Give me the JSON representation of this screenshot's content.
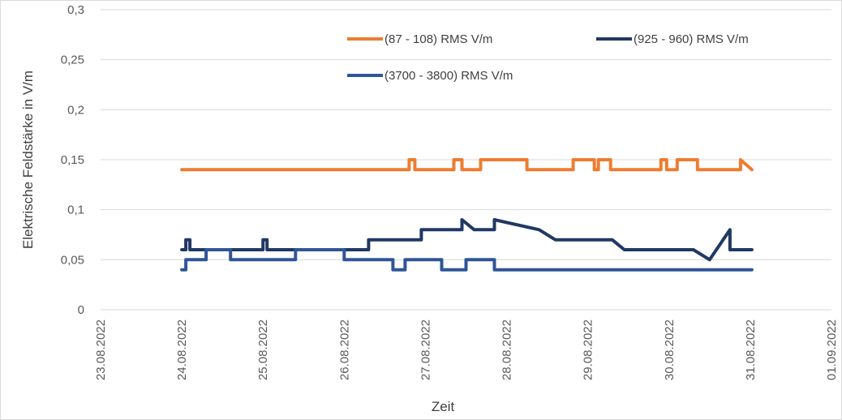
{
  "chart_data": {
    "type": "line",
    "title": "",
    "xlabel": "Zeit",
    "ylabel": "Elektrische Feldstärke in V/m",
    "ylim": [
      0,
      0.3
    ],
    "y_ticks": [
      "0",
      "0,05",
      "0,1",
      "0,15",
      "0,2",
      "0,25",
      "0,3"
    ],
    "x_tick_labels": [
      "23.08.2022",
      "24.08.2022",
      "25.08.2022",
      "26.08.2022",
      "27.08.2022",
      "28.08.2022",
      "29.08.2022",
      "30.08.2022",
      "31.08.2022",
      "01.09.2022"
    ],
    "xlim": [
      "23.08.2022",
      "01.09.2022"
    ],
    "grid": true,
    "legend_position": "top",
    "series": [
      {
        "name": "(87 - 108) RMS  V/m",
        "color": "#ed7d31",
        "x_days": [
          1.0,
          3.8,
          3.8,
          3.87,
          3.87,
          4.35,
          4.35,
          4.45,
          4.45,
          4.68,
          4.68,
          5.25,
          5.25,
          5.82,
          5.82,
          6.08,
          6.08,
          6.13,
          6.13,
          6.28,
          6.28,
          6.9,
          6.9,
          6.97,
          6.97,
          7.1,
          7.1,
          7.35,
          7.35,
          7.88,
          7.88,
          8.02
        ],
        "y": [
          0.14,
          0.14,
          0.15,
          0.15,
          0.14,
          0.14,
          0.15,
          0.15,
          0.14,
          0.14,
          0.15,
          0.15,
          0.14,
          0.14,
          0.15,
          0.15,
          0.14,
          0.14,
          0.15,
          0.15,
          0.14,
          0.14,
          0.15,
          0.15,
          0.14,
          0.14,
          0.15,
          0.15,
          0.14,
          0.14,
          0.15,
          0.14
        ]
      },
      {
        "name": "(925 - 960) RMS  V/m",
        "color": "#203864",
        "x_days": [
          1.0,
          1.05,
          1.05,
          1.1,
          1.1,
          2.0,
          2.0,
          2.05,
          2.05,
          2.2,
          2.2,
          3.3,
          3.3,
          3.65,
          3.65,
          3.95,
          3.95,
          4.2,
          4.2,
          4.45,
          4.45,
          4.6,
          4.6,
          4.85,
          4.85,
          5.4,
          5.4,
          5.6,
          5.6,
          6.3,
          6.3,
          6.45,
          6.45,
          7.3,
          7.3,
          7.5,
          7.5,
          7.75,
          7.75,
          8.02
        ],
        "y": [
          0.06,
          0.06,
          0.07,
          0.07,
          0.06,
          0.06,
          0.07,
          0.07,
          0.06,
          0.06,
          0.06,
          0.06,
          0.07,
          0.07,
          0.07,
          0.07,
          0.08,
          0.08,
          0.08,
          0.08,
          0.09,
          0.08,
          0.08,
          0.08,
          0.09,
          0.08,
          0.08,
          0.07,
          0.07,
          0.07,
          0.07,
          0.06,
          0.06,
          0.06,
          0.06,
          0.05,
          0.05,
          0.08,
          0.06,
          0.06
        ]
      },
      {
        "name": "(3700 - 3800) RMS  V/m",
        "color": "#2f5597",
        "x_days": [
          1.0,
          1.05,
          1.05,
          1.3,
          1.3,
          1.6,
          1.6,
          2.4,
          2.4,
          3.0,
          3.0,
          3.6,
          3.6,
          3.75,
          3.75,
          4.2,
          4.2,
          4.5,
          4.5,
          4.85,
          4.85,
          8.02
        ],
        "y": [
          0.04,
          0.04,
          0.05,
          0.05,
          0.06,
          0.06,
          0.05,
          0.05,
          0.06,
          0.06,
          0.05,
          0.05,
          0.04,
          0.04,
          0.05,
          0.05,
          0.04,
          0.04,
          0.05,
          0.05,
          0.04,
          0.04
        ]
      }
    ]
  }
}
